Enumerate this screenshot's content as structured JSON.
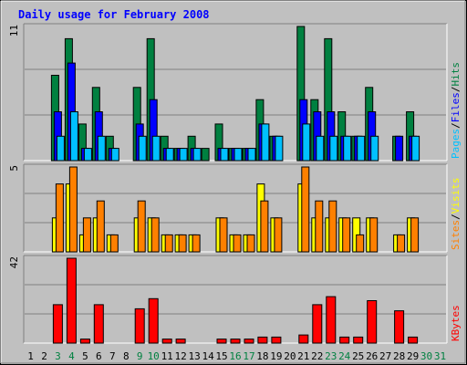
{
  "chart_data": [
    {
      "type": "bar",
      "title": "Daily usage for February 2008",
      "categories": [
        "1",
        "2",
        "3",
        "4",
        "5",
        "6",
        "7",
        "8",
        "9",
        "10",
        "11",
        "12",
        "13",
        "14",
        "15",
        "16",
        "17",
        "18",
        "19",
        "20",
        "21",
        "22",
        "23",
        "24",
        "25",
        "26",
        "27",
        "28",
        "29",
        "30",
        "31"
      ],
      "category_colors": [
        "#000000",
        "#000000",
        "#008040",
        "#008040",
        "#000000",
        "#000000",
        "#000000",
        "#000000",
        "#008040",
        "#008040",
        "#000000",
        "#000000",
        "#000000",
        "#000000",
        "#000000",
        "#008040",
        "#008040",
        "#000000",
        "#000000",
        "#000000",
        "#000000",
        "#000000",
        "#008040",
        "#008040",
        "#000000",
        "#000000",
        "#000000",
        "#000000",
        "#000000",
        "#008040",
        "#008040"
      ],
      "panels": [
        {
          "id": "hits",
          "ymax_label": "11",
          "ymax": 11,
          "legend": [
            "Pages",
            "/",
            "Files",
            "/",
            "Hits"
          ],
          "legend_colors": [
            "#00C0FF",
            "#000000",
            "#0000FF",
            "#000000",
            "#008040"
          ],
          "series": [
            {
              "name": "Hits",
              "color": "#008040",
              "values": [
                0,
                0,
                7,
                10,
                3,
                6,
                2,
                0,
                6,
                10,
                2,
                1,
                2,
                1,
                3,
                1,
                1,
                5,
                2,
                0,
                11,
                5,
                10,
                4,
                2,
                6,
                0,
                2,
                4,
                0,
                0
              ]
            },
            {
              "name": "Files",
              "color": "#0000FF",
              "values": [
                0,
                0,
                4,
                8,
                1,
                4,
                1,
                0,
                3,
                5,
                1,
                1,
                1,
                0,
                1,
                1,
                1,
                3,
                2,
                0,
                5,
                4,
                4,
                2,
                2,
                4,
                0,
                2,
                2,
                0,
                0
              ]
            },
            {
              "name": "Pages",
              "color": "#00C0FF",
              "values": [
                0,
                0,
                2,
                4,
                1,
                2,
                1,
                0,
                2,
                2,
                1,
                1,
                1,
                0,
                1,
                1,
                1,
                3,
                2,
                0,
                3,
                2,
                2,
                2,
                2,
                2,
                0,
                0,
                2,
                0,
                0
              ]
            }
          ]
        },
        {
          "id": "visits",
          "ymax_label": "5",
          "ymax": 5,
          "legend": [
            "Sites",
            "/",
            "Visits"
          ],
          "legend_colors": [
            "#FF8000",
            "#000000",
            "#FFFF00"
          ],
          "series": [
            {
              "name": "Visits",
              "color": "#FFFF00",
              "values": [
                0,
                0,
                2,
                4,
                1,
                2,
                1,
                0,
                2,
                2,
                1,
                1,
                1,
                0,
                2,
                1,
                1,
                4,
                2,
                0,
                4,
                2,
                2,
                2,
                2,
                2,
                0,
                1,
                2,
                0,
                0
              ]
            },
            {
              "name": "Sites",
              "color": "#FF8000",
              "values": [
                0,
                0,
                4,
                5,
                2,
                3,
                1,
                0,
                3,
                2,
                1,
                1,
                1,
                0,
                2,
                1,
                1,
                3,
                2,
                0,
                5,
                3,
                3,
                2,
                1,
                2,
                0,
                1,
                2,
                0,
                0
              ]
            }
          ]
        },
        {
          "id": "kbytes",
          "ymax_label": "42",
          "ymax": 42,
          "legend": [
            "KBytes"
          ],
          "legend_colors": [
            "#FF0000"
          ],
          "series": [
            {
              "name": "KBytes",
              "color": "#FF0000",
              "values": [
                0,
                0,
                19,
                42,
                2,
                19,
                0,
                0,
                17,
                22,
                2,
                2,
                0,
                0,
                2,
                2,
                2,
                3,
                3,
                0,
                4,
                19,
                23,
                3,
                3,
                21,
                0,
                16,
                3,
                0,
                0
              ]
            }
          ]
        }
      ]
    }
  ]
}
